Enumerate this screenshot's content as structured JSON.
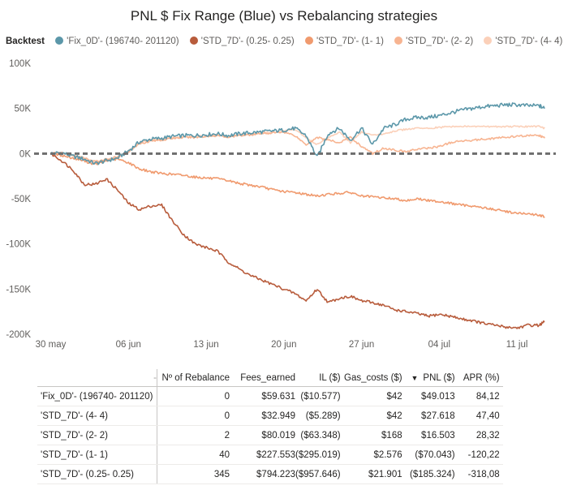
{
  "chart_data": {
    "type": "line",
    "title": "PNL $ Fix Range (Blue) vs Rebalancing strategies",
    "legend_title": "Backtest",
    "legend_position": "top-left",
    "xlabel": "",
    "ylabel": "",
    "ylim": [
      -200000,
      100000
    ],
    "y_ticks": [
      100000,
      50000,
      0,
      -50000,
      -100000,
      -150000,
      -200000
    ],
    "y_tick_labels": [
      "100K",
      "50K",
      "0K",
      "-50K",
      "-100K",
      "-150K",
      "-200K"
    ],
    "x_tick_labels": [
      "30 may",
      "06 jun",
      "13 jun",
      "20 jun",
      "27 jun",
      "04 jul",
      "11 jul"
    ],
    "x_tick_days": [
      0,
      7,
      14,
      21,
      28,
      35,
      42
    ],
    "x_range_days": [
      -1.5,
      45.5
    ],
    "zero_line": true,
    "grid": false,
    "series": [
      {
        "name": "'Fix_0D'- (196740- 201120)",
        "color": "#5b97a9",
        "x": [
          0,
          1,
          2,
          3,
          4,
          5,
          6,
          7,
          8,
          9,
          10,
          11,
          12,
          13,
          14,
          15,
          16,
          17,
          18,
          19,
          20,
          21,
          22,
          23,
          24,
          25,
          26,
          27,
          28,
          29,
          30,
          31,
          32,
          33,
          34,
          35,
          36,
          37,
          38,
          39,
          40,
          41,
          42,
          43,
          44,
          44.5
        ],
        "y": [
          0,
          1000,
          -3000,
          -6000,
          -11000,
          -8000,
          -5000,
          3000,
          13000,
          16000,
          17000,
          19000,
          20000,
          20000,
          21000,
          22000,
          20000,
          22000,
          23000,
          24000,
          25000,
          26000,
          28000,
          20000,
          -4000,
          22000,
          28000,
          15000,
          28000,
          10000,
          28000,
          32000,
          38000,
          40000,
          40000,
          42000,
          45000,
          48000,
          50000,
          52000,
          53000,
          54000,
          54000,
          53000,
          53000,
          50000
        ]
      },
      {
        "name": "'STD_7D'- (0.25- 0.25)",
        "color": "#b85c3c",
        "x": [
          0,
          1,
          2,
          3,
          4,
          5,
          6,
          7,
          8,
          9,
          10,
          11,
          12,
          13,
          14,
          15,
          16,
          17,
          18,
          19,
          20,
          21,
          22,
          23,
          24,
          25,
          26,
          27,
          28,
          29,
          30,
          31,
          32,
          33,
          34,
          35,
          36,
          37,
          38,
          39,
          40,
          41,
          42,
          43,
          44,
          44.5
        ],
        "y": [
          0,
          -8000,
          -18000,
          -34000,
          -34000,
          -28000,
          -40000,
          -55000,
          -62000,
          -58000,
          -57000,
          -75000,
          -90000,
          -100000,
          -104000,
          -108000,
          -120000,
          -128000,
          -135000,
          -140000,
          -145000,
          -150000,
          -155000,
          -163000,
          -150000,
          -165000,
          -160000,
          -158000,
          -163000,
          -165000,
          -168000,
          -173000,
          -175000,
          -177000,
          -180000,
          -178000,
          -180000,
          -183000,
          -185000,
          -188000,
          -190000,
          -192000,
          -193000,
          -190000,
          -190000,
          -186000
        ]
      },
      {
        "name": "'STD_7D'- (1- 1)",
        "color": "#f09a6e",
        "x": [
          0,
          1,
          2,
          3,
          4,
          5,
          6,
          7,
          8,
          9,
          10,
          11,
          12,
          13,
          14,
          15,
          16,
          17,
          18,
          19,
          20,
          21,
          22,
          23,
          24,
          25,
          26,
          27,
          28,
          29,
          30,
          31,
          32,
          33,
          34,
          35,
          36,
          37,
          38,
          39,
          40,
          41,
          42,
          43,
          44,
          44.5
        ],
        "y": [
          0,
          -2000,
          -5000,
          -8000,
          -12000,
          -8000,
          -6000,
          -10000,
          -17000,
          -20000,
          -22000,
          -23000,
          -24000,
          -26000,
          -27000,
          -28000,
          -30000,
          -33000,
          -35000,
          -37000,
          -40000,
          -42000,
          -43000,
          -45000,
          -47000,
          -45000,
          -44000,
          -43000,
          -47000,
          -48000,
          -49000,
          -50000,
          -52000,
          -50000,
          -52000,
          -53000,
          -55000,
          -57000,
          -58000,
          -60000,
          -62000,
          -64000,
          -66000,
          -67000,
          -68000,
          -70000
        ]
      },
      {
        "name": "'STD_7D'- (2- 2)",
        "color": "#f7b491",
        "x": [
          0,
          1,
          2,
          3,
          4,
          5,
          6,
          7,
          8,
          9,
          10,
          11,
          12,
          13,
          14,
          15,
          16,
          17,
          18,
          19,
          20,
          21,
          22,
          23,
          24,
          25,
          26,
          27,
          28,
          29,
          30,
          31,
          32,
          33,
          34,
          35,
          36,
          37,
          38,
          39,
          40,
          41,
          42,
          43,
          44,
          44.5
        ],
        "y": [
          0,
          1000,
          -2000,
          -5000,
          -9000,
          -6000,
          -4000,
          2000,
          11000,
          14000,
          15000,
          17000,
          18000,
          18000,
          19000,
          20000,
          18000,
          20000,
          21000,
          22000,
          23000,
          24000,
          20000,
          10000,
          18000,
          15000,
          12000,
          18000,
          8000,
          0,
          6000,
          4000,
          2000,
          5000,
          6000,
          8000,
          12000,
          14000,
          15000,
          16000,
          17000,
          18000,
          19000,
          20000,
          20000,
          17000
        ]
      },
      {
        "name": "'STD_7D'- (4- 4)",
        "color": "#fbd0b9",
        "x": [
          0,
          1,
          2,
          3,
          4,
          5,
          6,
          7,
          8,
          9,
          10,
          11,
          12,
          13,
          14,
          15,
          16,
          17,
          18,
          19,
          20,
          21,
          22,
          23,
          24,
          25,
          26,
          27,
          28,
          29,
          30,
          31,
          32,
          33,
          34,
          35,
          36,
          37,
          38,
          39,
          40,
          41,
          42,
          43,
          44,
          44.5
        ],
        "y": [
          0,
          1000,
          -2000,
          -5000,
          -10000,
          -7000,
          -5000,
          3000,
          12000,
          15000,
          16000,
          18000,
          19000,
          19000,
          20000,
          21000,
          19000,
          21000,
          22000,
          23000,
          24000,
          25000,
          27000,
          18000,
          10000,
          18000,
          24000,
          12000,
          24000,
          20000,
          22000,
          25000,
          27000,
          28000,
          28000,
          29000,
          30000,
          30000,
          30000,
          30000,
          30000,
          30000,
          30000,
          30000,
          30000,
          28000
        ]
      }
    ]
  },
  "table": {
    "columns": [
      "-",
      "Nº of Rebalance",
      "Fees_earned",
      "IL ($)",
      "Gas_costs ($)",
      "PNL ($)",
      "APR (%)"
    ],
    "sort_icon": "sort-descending-icon",
    "rows": [
      [
        "'Fix_0D'- (196740- 201120)",
        "0",
        "$59.631",
        "($10.577)",
        "$42",
        "$49.013",
        "84,12"
      ],
      [
        "'STD_7D'- (4- 4)",
        "0",
        "$32.949",
        "($5.289)",
        "$42",
        "$27.618",
        "47,40"
      ],
      [
        "'STD_7D'- (2- 2)",
        "2",
        "$80.019",
        "($63.348)",
        "$168",
        "$16.503",
        "28,32"
      ],
      [
        "'STD_7D'- (1- 1)",
        "40",
        "$227.553",
        "($295.019)",
        "$2.576",
        "($70.043)",
        "-120,22"
      ],
      [
        "'STD_7D'- (0.25- 0.25)",
        "345",
        "$794.223",
        "($957.646)",
        "$21.901",
        "($185.324)",
        "-318,08"
      ]
    ]
  }
}
